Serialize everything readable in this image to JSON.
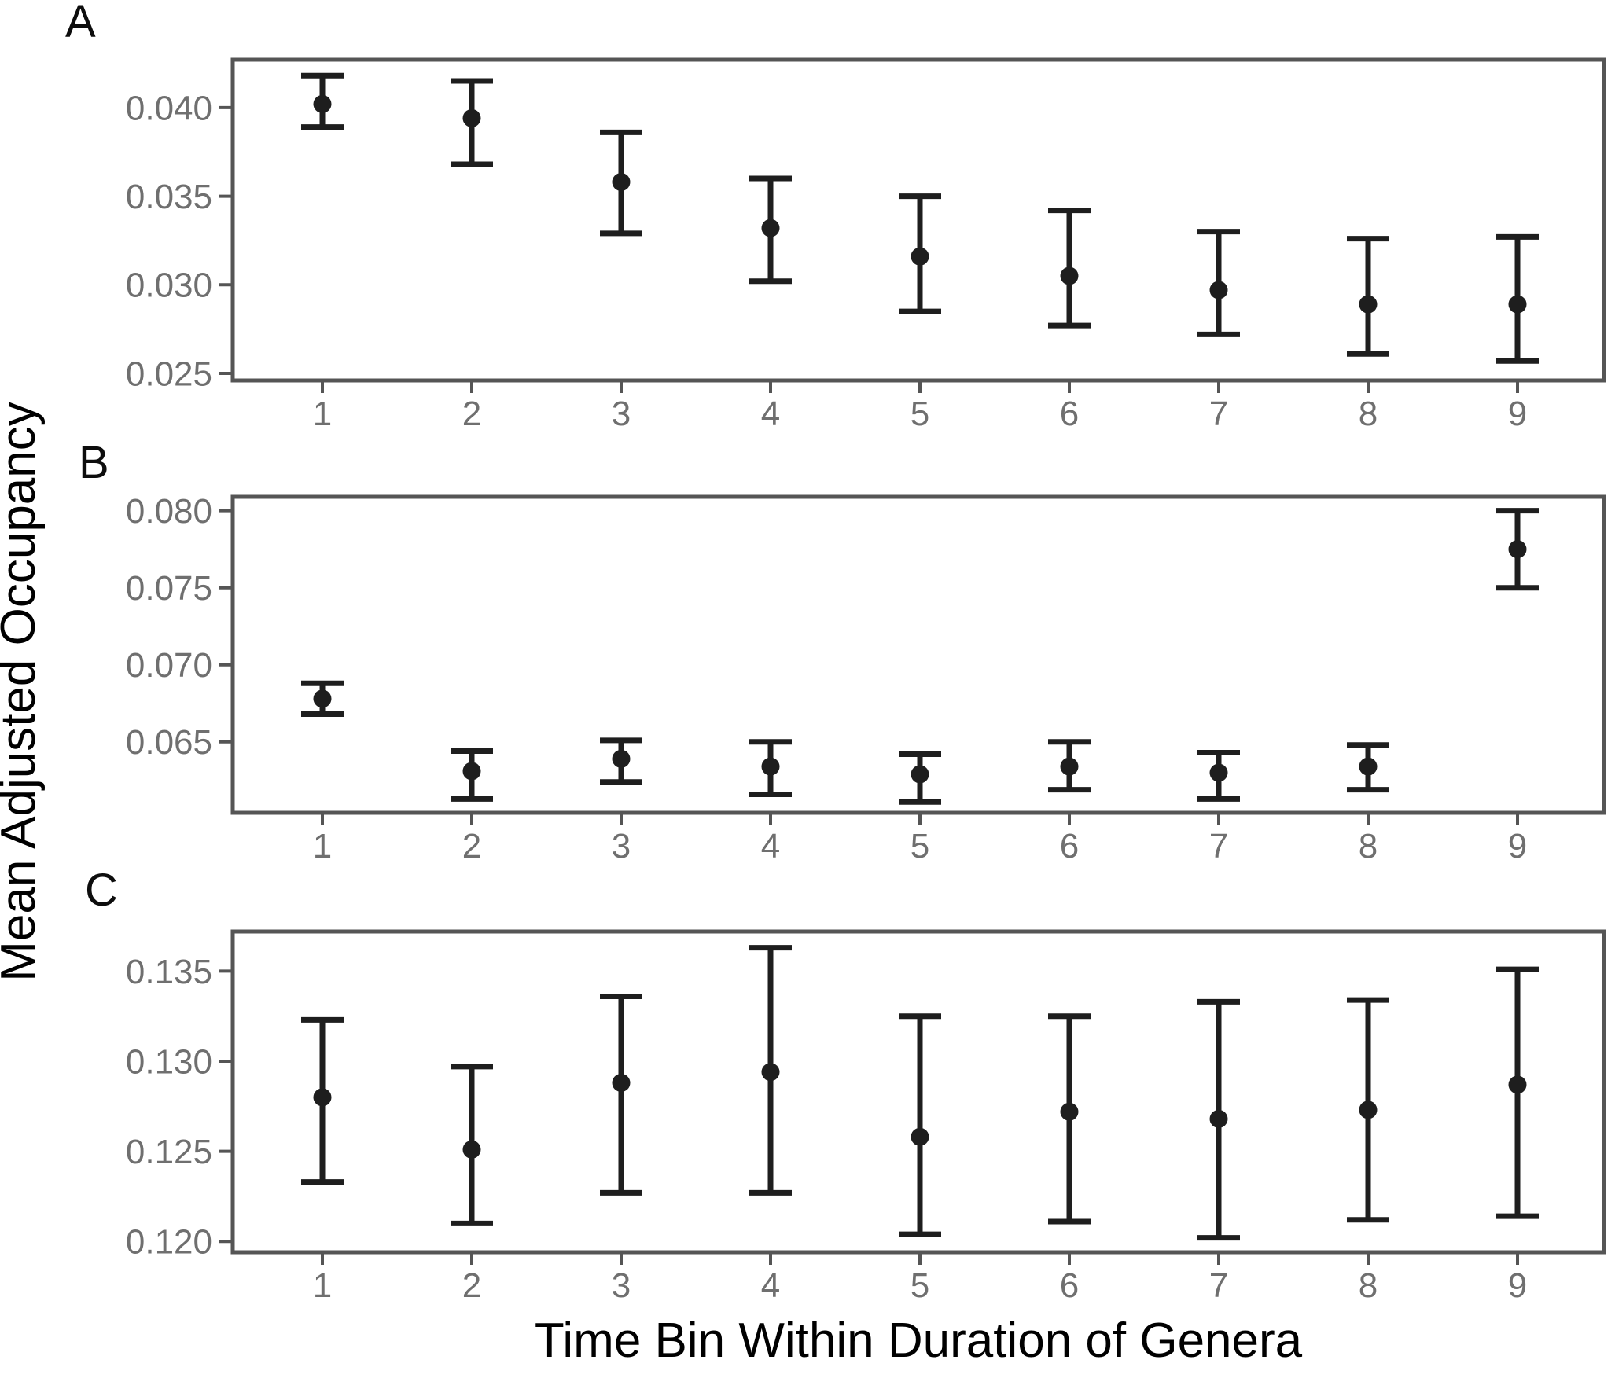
{
  "figure": {
    "xlabel": "Time Bin Within Duration of Genera",
    "ylabel": "Mean Adjusted Occupancy",
    "colors": {
      "points": "#1e1e1e",
      "axis": "#555555",
      "tick_labels": "#6f6f6f",
      "titles": "#000000",
      "background": "#ffffff"
    }
  },
  "chart_data": [
    {
      "type": "scatter",
      "panel_label": "A",
      "title": "",
      "xlabel": "Time Bin Within Duration of Genera",
      "ylabel": "Mean Adjusted Occupancy",
      "legend": "none",
      "grid": false,
      "x": [
        1,
        2,
        3,
        4,
        5,
        6,
        7,
        8,
        9
      ],
      "xtick_labels": [
        "1",
        "2",
        "3",
        "4",
        "5",
        "6",
        "7",
        "8",
        "9"
      ],
      "means": [
        0.0402,
        0.0394,
        0.0358,
        0.0332,
        0.0316,
        0.0305,
        0.0297,
        0.0289,
        0.0289
      ],
      "ci_low": [
        0.0389,
        0.0368,
        0.0329,
        0.0302,
        0.0285,
        0.0277,
        0.0272,
        0.0261,
        0.0257
      ],
      "ci_high": [
        0.0418,
        0.0415,
        0.0386,
        0.036,
        0.035,
        0.0342,
        0.033,
        0.0326,
        0.0327
      ],
      "ylim": [
        0.0246,
        0.0427
      ],
      "yticks": [
        0.04,
        0.035,
        0.03,
        0.025
      ],
      "ytick_labels": [
        "0.040",
        "0.035",
        "0.030",
        "0.025"
      ]
    },
    {
      "type": "scatter",
      "panel_label": "B",
      "title": "",
      "xlabel": "Time Bin Within Duration of Genera",
      "ylabel": "Mean Adjusted Occupancy",
      "legend": "none",
      "grid": false,
      "x": [
        1,
        2,
        3,
        4,
        5,
        6,
        7,
        8,
        9
      ],
      "xtick_labels": [
        "1",
        "2",
        "3",
        "4",
        "5",
        "6",
        "7",
        "8",
        "9"
      ],
      "means": [
        0.0678,
        0.0631,
        0.0639,
        0.0634,
        0.0629,
        0.0634,
        0.063,
        0.0634,
        0.0775
      ],
      "ci_low": [
        0.0668,
        0.0613,
        0.0624,
        0.0616,
        0.0611,
        0.0619,
        0.0613,
        0.0619,
        0.075
      ],
      "ci_high": [
        0.0688,
        0.0644,
        0.0651,
        0.065,
        0.0642,
        0.065,
        0.0643,
        0.0648,
        0.08
      ],
      "ylim": [
        0.0604,
        0.0809
      ],
      "yticks": [
        0.08,
        0.075,
        0.07,
        0.065
      ],
      "ytick_labels": [
        "0.080",
        "0.075",
        "0.070",
        "0.065"
      ]
    },
    {
      "type": "scatter",
      "panel_label": "C",
      "title": "",
      "xlabel": "Time Bin Within Duration of Genera",
      "ylabel": "Mean Adjusted Occupancy",
      "legend": "none",
      "grid": false,
      "x": [
        1,
        2,
        3,
        4,
        5,
        6,
        7,
        8,
        9
      ],
      "xtick_labels": [
        "1",
        "2",
        "3",
        "4",
        "5",
        "6",
        "7",
        "8",
        "9"
      ],
      "means": [
        0.128,
        0.1251,
        0.1288,
        0.1294,
        0.1258,
        0.1272,
        0.1268,
        0.1273,
        0.1287
      ],
      "ci_low": [
        0.1233,
        0.121,
        0.1227,
        0.1227,
        0.1204,
        0.1211,
        0.1202,
        0.1212,
        0.1214
      ],
      "ci_high": [
        0.1323,
        0.1297,
        0.1336,
        0.1363,
        0.1325,
        0.1325,
        0.1333,
        0.1334,
        0.1351
      ],
      "ylim": [
        0.1194,
        0.1372
      ],
      "yticks": [
        0.135,
        0.13,
        0.125,
        0.12
      ],
      "ytick_labels": [
        "0.135",
        "0.130",
        "0.125",
        "0.120"
      ]
    }
  ]
}
